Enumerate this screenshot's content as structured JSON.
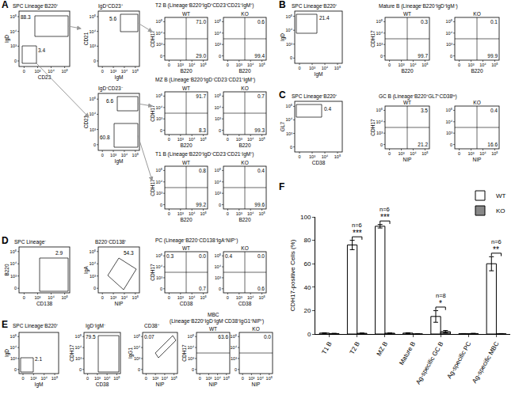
{
  "figure": {
    "tick_labels": [
      "0",
      "10³",
      "10⁴",
      "10⁵"
    ],
    "panels": [
      {
        "letter": "A",
        "headers": [
          "SPC Lineage⁻B220⁺",
          "IgD⁺CD23⁺",
          "IgD⁻CD23⁻",
          "T2 B (Lineage⁻B220⁺IgD⁺CD23⁺CD21⁺IgM⁺)",
          "MZ B (Lineage⁻B220⁺IgD⁻CD23⁻CD21⁺IgM⁺)",
          "T1 B (Lineage⁻B220⁺IgD⁻CD23⁻CD21⁻IgM⁺)"
        ],
        "plots": [
          {
            "x_label": "CD23",
            "y_label": "IgD",
            "gates": [
              "88.3",
              "3.4"
            ]
          },
          {
            "x_label": "IgM",
            "y_label": "CD21",
            "gates": [
              "5.6"
            ]
          },
          {
            "x_label": "IgM",
            "y_label": "CD21",
            "gates": [
              "6.6",
              "60.8"
            ]
          },
          {
            "title": "WT",
            "x_label": "B220",
            "y_label": "CDH17",
            "quadrants": [
              {
                "label": "71.0",
                "position": "upper-right"
              },
              {
                "label": "29.0",
                "position": "lower-right"
              }
            ]
          },
          {
            "title": "KO",
            "x_label": "B220",
            "quadrants": [
              {
                "label": "0.6",
                "position": "upper-right"
              },
              {
                "label": "99.4",
                "position": "lower-right"
              }
            ]
          },
          {
            "title": "WT",
            "x_label": "B220",
            "y_label": "CDH17",
            "quadrants": [
              {
                "label": "91.7",
                "position": "upper-right"
              },
              {
                "label": "8.3",
                "position": "lower-right"
              }
            ]
          },
          {
            "title": "KO",
            "x_label": "B220",
            "quadrants": [
              {
                "label": "0.7",
                "position": "upper-right"
              },
              {
                "label": "99.3",
                "position": "lower-right"
              }
            ]
          },
          {
            "title": "WT",
            "x_label": "B220",
            "y_label": "CDH17",
            "quadrants": [
              {
                "label": "0.8",
                "position": "upper-right"
              },
              {
                "label": "99.2",
                "position": "lower-right"
              }
            ]
          },
          {
            "title": "KO",
            "x_label": "B220",
            "quadrants": [
              {
                "label": "0.4",
                "position": "upper-right"
              },
              {
                "label": "99.6",
                "position": "lower-right"
              }
            ]
          }
        ]
      },
      {
        "letter": "B",
        "headers": [
          "SPC Lineage⁻B220⁺",
          "Mature B (Lineage⁻B220⁺IgD⁺IgM⁻)"
        ],
        "plots": [
          {
            "x_label": "IgM",
            "y_label": "IgD",
            "gates": [
              "21.4"
            ]
          },
          {
            "title": "WT",
            "x_label": "B220",
            "y_label": "CDH17",
            "quadrants": [
              {
                "label": "0.3",
                "position": "upper-right"
              },
              {
                "label": "99.7",
                "position": "lower-right"
              }
            ]
          },
          {
            "title": "KO",
            "x_label": "B220",
            "quadrants": [
              {
                "label": "0.1",
                "position": "upper-right"
              },
              {
                "label": "99.9",
                "position": "lower-right"
              }
            ]
          }
        ]
      },
      {
        "letter": "C",
        "headers": [
          "SPC Lineage⁻B220⁺",
          "GC B (Lineage⁻B220⁺GL7⁺CD38ˡᵒ)"
        ],
        "plots": [
          {
            "x_label": "CD38",
            "y_label": "GL7",
            "gates": [
              "0.4"
            ]
          },
          {
            "title": "WT",
            "x_label": "NIP",
            "y_label": "CDH17",
            "quadrants": [
              {
                "label": "3.5",
                "position": "upper-right"
              },
              {
                "label": "21.2",
                "position": "lower-right"
              }
            ]
          },
          {
            "title": "KO",
            "x_label": "NIP",
            "quadrants": [
              {
                "label": "0.4",
                "position": "upper-right"
              },
              {
                "label": "16.6",
                "position": "lower-right"
              }
            ]
          }
        ]
      },
      {
        "letter": "D",
        "headers": [
          "SPC Lineage⁻",
          "B220⁻CD138⁺",
          "PC (Lineage⁻B220⁻CD138⁺IgA⁺NIP⁺)"
        ],
        "plots": [
          {
            "x_label": "CD138",
            "y_label": "B220",
            "gates": [
              "2.9"
            ]
          },
          {
            "x_label": "NIP",
            "y_label": "IgA",
            "gates": [
              "54.3"
            ]
          },
          {
            "title": "WT",
            "x_label": "CD38",
            "y_label": "CDH17",
            "quadrants": [
              {
                "label": "0.3",
                "position": "upper-left"
              },
              {
                "label": "0.0",
                "position": "upper-right"
              },
              {
                "label": "0.7",
                "position": "lower-right"
              }
            ]
          },
          {
            "title": "KO",
            "x_label": "CD38",
            "quadrants": [
              {
                "label": "0.4",
                "position": "upper-left"
              },
              {
                "label": "0.0",
                "position": "upper-right"
              },
              {
                "label": "0.6",
                "position": "lower-right"
              }
            ]
          }
        ]
      },
      {
        "letter": "E",
        "headers": [
          "SPC Lineage⁻B220⁺",
          "IgD⁻IgM⁻",
          "CD38⁺",
          "MBC",
          "(Lineage⁻B220⁺IgD⁻IgM⁻CD38⁺IgG1⁺NIP⁺)"
        ],
        "plots": [
          {
            "x_label": "IgM",
            "y_label": "IgD",
            "gates": [
              "2.1"
            ]
          },
          {
            "x_label": "CD38",
            "y_label": "CDH17",
            "gates": [
              "79.5"
            ]
          },
          {
            "x_label": "NIP",
            "y_label": "IgG1",
            "gates": [
              "0.07"
            ]
          },
          {
            "title": "WT",
            "x_label": "NIP",
            "y_label": "CDH17",
            "quadrants": [
              {
                "label": "63.6",
                "position": "upper-right"
              }
            ]
          },
          {
            "title": "KO",
            "x_label": "NIP",
            "quadrants": [
              {
                "label": "0.0",
                "position": "upper-right"
              }
            ]
          }
        ]
      },
      {
        "letter": "F"
      }
    ]
  },
  "chart_data": {
    "type": "bar",
    "y_label": "CDH17-positive Cells (%)",
    "categories": [
      "T1 B",
      "T2 B",
      "MZ B",
      "Mature B",
      "Ag-specific GC B",
      "Ag-specific PC",
      "Ag-specific MBC"
    ],
    "series": [
      {
        "name": "WT",
        "color": "#ffffff",
        "values": [
          0.8,
          76,
          92,
          0.8,
          15,
          0.3,
          60
        ],
        "errors": [
          0.3,
          4,
          1.5,
          0.3,
          5,
          0.1,
          6
        ]
      },
      {
        "name": "KO",
        "color": "#888888",
        "values": [
          0.4,
          0.6,
          0.7,
          0.1,
          2,
          0.4,
          0.2
        ],
        "errors": [
          0.2,
          0.3,
          0.3,
          0.1,
          1,
          0.2,
          0.2
        ]
      }
    ],
    "ylim": [
      0,
      100
    ],
    "yticks": [
      0,
      20,
      40,
      60,
      80,
      100
    ],
    "legend": "top-right",
    "significance": [
      {
        "category": "T2 B",
        "label": "***",
        "n": "n=6"
      },
      {
        "category": "MZ B",
        "label": "***",
        "n": "n=6"
      },
      {
        "category": "Ag-specific GC B",
        "label": "*",
        "n": "n=8"
      },
      {
        "category": "Ag-specific MBC",
        "label": "**",
        "n": "n=6"
      }
    ]
  }
}
